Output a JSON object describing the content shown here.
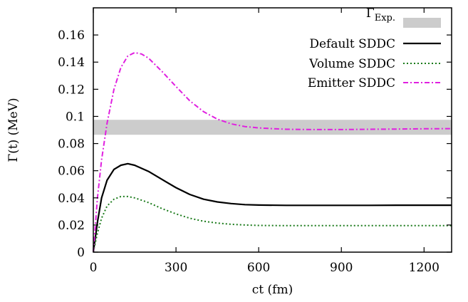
{
  "chart_data": {
    "type": "line",
    "title": "",
    "xlabel": "ct (fm)",
    "ylabel": "Γ(t) (MeV)",
    "xlim": [
      0,
      1300
    ],
    "ylim": [
      0,
      0.18
    ],
    "x_ticks": [
      "0",
      "300",
      "600",
      "900",
      "1200"
    ],
    "x_tick_values": [
      0,
      300,
      600,
      900,
      1200
    ],
    "y_ticks": [
      "0",
      "0.02",
      "0.04",
      "0.06",
      "0.08",
      "0.1",
      "0.12",
      "0.14",
      "0.16"
    ],
    "y_tick_values": [
      0,
      0.02,
      0.04,
      0.06,
      0.08,
      0.1,
      0.12,
      0.14,
      0.16
    ],
    "grid": false,
    "legend_position": "top-right",
    "band": {
      "name_main": "Γ",
      "name_sub": "Exp.",
      "y_low": 0.0865,
      "y_high": 0.0975,
      "color": "#cccccc"
    },
    "series": [
      {
        "name": "Default SDDC",
        "color": "#000000",
        "style": "solid",
        "x": [
          0,
          15,
          30,
          50,
          75,
          100,
          125,
          150,
          200,
          250,
          300,
          350,
          400,
          450,
          500,
          550,
          600,
          700,
          800,
          900,
          1000,
          1100,
          1200,
          1300
        ],
        "y": [
          0,
          0.022,
          0.04,
          0.053,
          0.061,
          0.064,
          0.0652,
          0.064,
          0.0595,
          0.0535,
          0.0475,
          0.0425,
          0.039,
          0.037,
          0.0358,
          0.035,
          0.0347,
          0.0345,
          0.0345,
          0.0345,
          0.0345,
          0.0346,
          0.0346,
          0.0346
        ]
      },
      {
        "name": "Volume SDDC",
        "color": "#1a7a1a",
        "style": "dotted",
        "x": [
          0,
          15,
          30,
          50,
          75,
          100,
          125,
          150,
          200,
          250,
          300,
          350,
          400,
          450,
          500,
          550,
          600,
          700,
          800,
          900,
          1000,
          1100,
          1200,
          1300
        ],
        "y": [
          0,
          0.014,
          0.025,
          0.034,
          0.039,
          0.041,
          0.041,
          0.04,
          0.0365,
          0.032,
          0.0282,
          0.025,
          0.0228,
          0.0214,
          0.0205,
          0.02,
          0.0197,
          0.0195,
          0.0195,
          0.0195,
          0.0195,
          0.0195,
          0.0196,
          0.0196
        ]
      },
      {
        "name": "Emitter SDDC",
        "color": "#e020e0",
        "style": "dashdot",
        "x": [
          0,
          15,
          30,
          50,
          75,
          100,
          125,
          150,
          175,
          200,
          250,
          300,
          350,
          400,
          450,
          500,
          550,
          600,
          650,
          700,
          800,
          900,
          1000,
          1100,
          1200,
          1300
        ],
        "y": [
          0,
          0.04,
          0.068,
          0.095,
          0.12,
          0.136,
          0.1445,
          0.147,
          0.146,
          0.143,
          0.133,
          0.122,
          0.1115,
          0.1035,
          0.098,
          0.0945,
          0.0925,
          0.0915,
          0.091,
          0.0905,
          0.0903,
          0.0903,
          0.0905,
          0.0907,
          0.0909,
          0.091
        ]
      }
    ]
  }
}
